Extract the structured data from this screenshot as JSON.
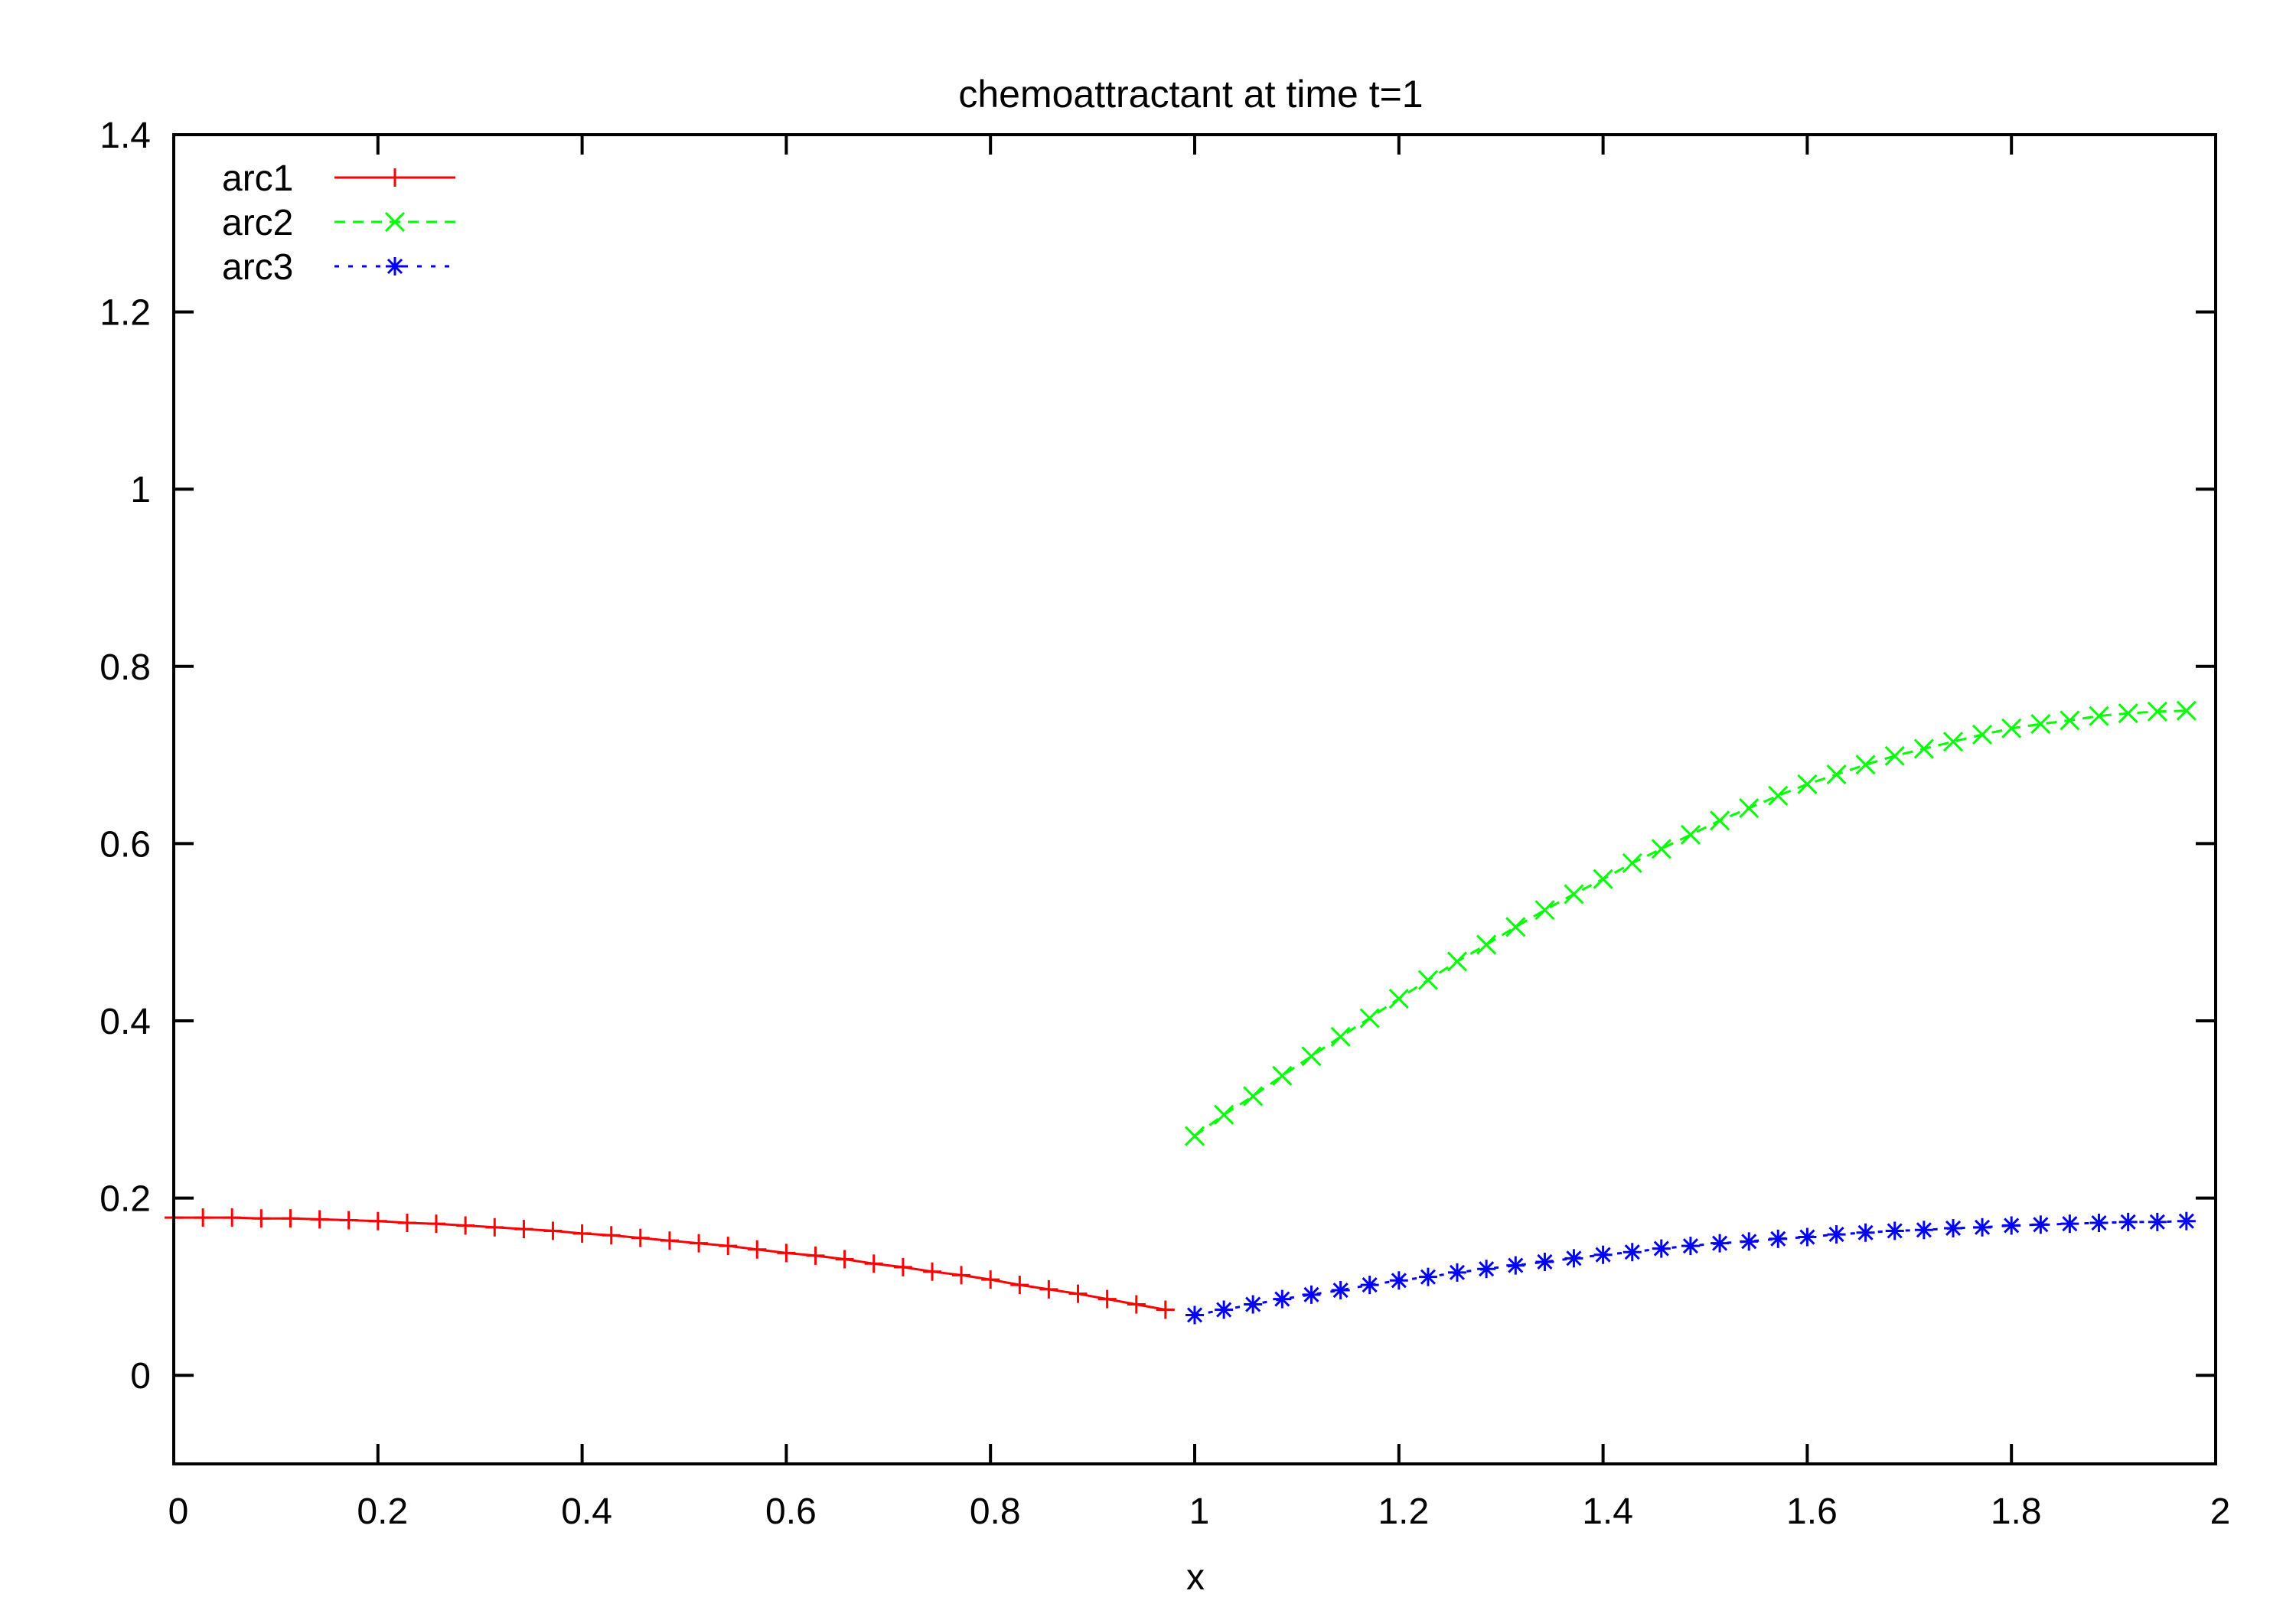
{
  "chart_data": {
    "type": "line",
    "title": "chemoattractant at time t=1",
    "xlabel": "x",
    "ylabel": "",
    "xlim": [
      0,
      2
    ],
    "ylim": [
      -0.1,
      1.4
    ],
    "grid": false,
    "legend_position": "top-left",
    "x_ticks": [
      "0",
      "0.2",
      "0.4",
      "0.6",
      "0.8",
      "1",
      "1.2",
      "1.4",
      "1.6",
      "1.8",
      "2"
    ],
    "y_ticks": [
      "0",
      "0.2",
      "0.4",
      "0.6",
      "0.8",
      "1",
      "1.2",
      "1.4"
    ],
    "series": [
      {
        "name": "arc1",
        "color": "#ff0000",
        "line_style": "solid",
        "marker": "plus",
        "x": [
          0.0,
          0.0286,
          0.0571,
          0.0857,
          0.1143,
          0.1429,
          0.1714,
          0.2,
          0.2286,
          0.2571,
          0.2857,
          0.3143,
          0.3429,
          0.3714,
          0.4,
          0.4286,
          0.4571,
          0.4857,
          0.5143,
          0.5429,
          0.5714,
          0.6,
          0.6286,
          0.6571,
          0.6857,
          0.7143,
          0.7429,
          0.7714,
          0.8,
          0.8286,
          0.8571,
          0.8857,
          0.9143,
          0.9429,
          0.9714
        ],
        "values": [
          0.178,
          0.178,
          0.178,
          0.177,
          0.177,
          0.176,
          0.175,
          0.174,
          0.172,
          0.171,
          0.169,
          0.167,
          0.165,
          0.163,
          0.16,
          0.158,
          0.155,
          0.152,
          0.149,
          0.146,
          0.142,
          0.138,
          0.135,
          0.131,
          0.126,
          0.122,
          0.117,
          0.113,
          0.108,
          0.102,
          0.097,
          0.092,
          0.086,
          0.08,
          0.074
        ]
      },
      {
        "name": "arc2",
        "color": "#00ff00",
        "line_style": "dashed",
        "marker": "cross",
        "x": [
          1.0,
          1.0286,
          1.0571,
          1.0857,
          1.1143,
          1.1429,
          1.1714,
          1.2,
          1.2286,
          1.2571,
          1.2857,
          1.3143,
          1.3429,
          1.3714,
          1.4,
          1.4286,
          1.4571,
          1.4857,
          1.5143,
          1.5429,
          1.5714,
          1.6,
          1.6286,
          1.6571,
          1.6857,
          1.7143,
          1.7429,
          1.7714,
          1.8,
          1.8286,
          1.8571,
          1.8857,
          1.9143,
          1.9429,
          1.9714
        ],
        "values": [
          0.27,
          0.294,
          0.315,
          0.338,
          0.36,
          0.382,
          0.403,
          0.425,
          0.446,
          0.467,
          0.486,
          0.506,
          0.525,
          0.543,
          0.56,
          0.578,
          0.594,
          0.61,
          0.626,
          0.64,
          0.654,
          0.667,
          0.678,
          0.689,
          0.699,
          0.707,
          0.715,
          0.723,
          0.73,
          0.735,
          0.739,
          0.744,
          0.747,
          0.749,
          0.75
        ]
      },
      {
        "name": "arc3",
        "color": "#0000ff",
        "line_style": "dotted",
        "marker": "star",
        "x": [
          1.0,
          1.0286,
          1.0571,
          1.0857,
          1.1143,
          1.1429,
          1.1714,
          1.2,
          1.2286,
          1.2571,
          1.2857,
          1.3143,
          1.3429,
          1.3714,
          1.4,
          1.4286,
          1.4571,
          1.4857,
          1.5143,
          1.5429,
          1.5714,
          1.6,
          1.6286,
          1.6571,
          1.6857,
          1.7143,
          1.7429,
          1.7714,
          1.8,
          1.8286,
          1.8571,
          1.8857,
          1.9143,
          1.9429,
          1.9714
        ],
        "values": [
          0.068,
          0.074,
          0.08,
          0.086,
          0.091,
          0.096,
          0.102,
          0.107,
          0.111,
          0.116,
          0.12,
          0.124,
          0.128,
          0.132,
          0.136,
          0.139,
          0.143,
          0.146,
          0.149,
          0.151,
          0.154,
          0.156,
          0.159,
          0.161,
          0.163,
          0.164,
          0.166,
          0.167,
          0.169,
          0.17,
          0.171,
          0.172,
          0.173,
          0.173,
          0.174
        ]
      }
    ]
  }
}
